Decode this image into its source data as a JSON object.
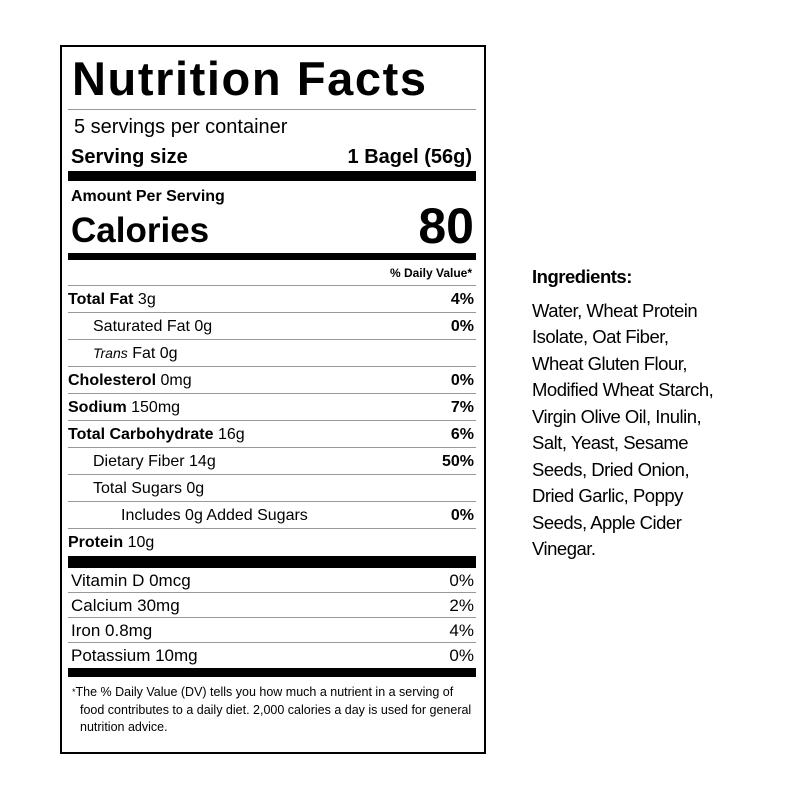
{
  "label": {
    "title": "Nutrition Facts",
    "servings_per_container": "5 servings per container",
    "serving_size_label": "Serving size",
    "serving_size_value": "1 Bagel (56g)",
    "amount_per_serving": "Amount Per Serving",
    "calories_label": "Calories",
    "calories_value": "80",
    "daily_value_header": "% Daily Value*",
    "nutrients": [
      {
        "name": "Total Fat",
        "amount": " 3g",
        "dv": "4%"
      },
      {
        "name": "Saturated Fat 0g",
        "amount": "",
        "dv": "0%"
      },
      {
        "name": "Trans",
        "amount": " Fat 0g",
        "dv": ""
      },
      {
        "name": "Cholesterol",
        "amount": " 0mg",
        "dv": "0%"
      },
      {
        "name": "Sodium",
        "amount": " 150mg",
        "dv": "7%"
      },
      {
        "name": "Total Carbohydrate",
        "amount": " 16g",
        "dv": "6%"
      },
      {
        "name": "Dietary Fiber 14g",
        "amount": "",
        "dv": "50%"
      },
      {
        "name": "Total Sugars 0g",
        "amount": "",
        "dv": ""
      },
      {
        "name": "Includes 0g Added Sugars",
        "amount": "",
        "dv": "0%"
      },
      {
        "name": "Protein",
        "amount": " 10g",
        "dv": ""
      }
    ],
    "micronutrients": [
      {
        "name": "Vitamin D 0mcg",
        "dv": "0%"
      },
      {
        "name": "Calcium 30mg",
        "dv": "2%"
      },
      {
        "name": "Iron 0.8mg",
        "dv": "4%"
      },
      {
        "name": "Potassium 10mg",
        "dv": "0%"
      }
    ],
    "footnote_star": "*",
    "footnote": "The % Daily Value (DV) tells you how much a nutrient in a serving of food contributes to a daily diet. 2,000 calories a day is used for general nutrition advice."
  },
  "ingredients": {
    "heading": "Ingredients:",
    "lines": [
      "Water, Wheat Protein",
      "Isolate, Oat Fiber,",
      "Wheat Gluten Flour,",
      "Modified Wheat Starch,",
      "Virgin Olive Oil, Inulin,",
      "Salt, Yeast, Sesame",
      "Seeds, Dried Onion,",
      "Dried Garlic, Poppy",
      "Seeds, Apple Cider",
      "Vinegar."
    ]
  }
}
